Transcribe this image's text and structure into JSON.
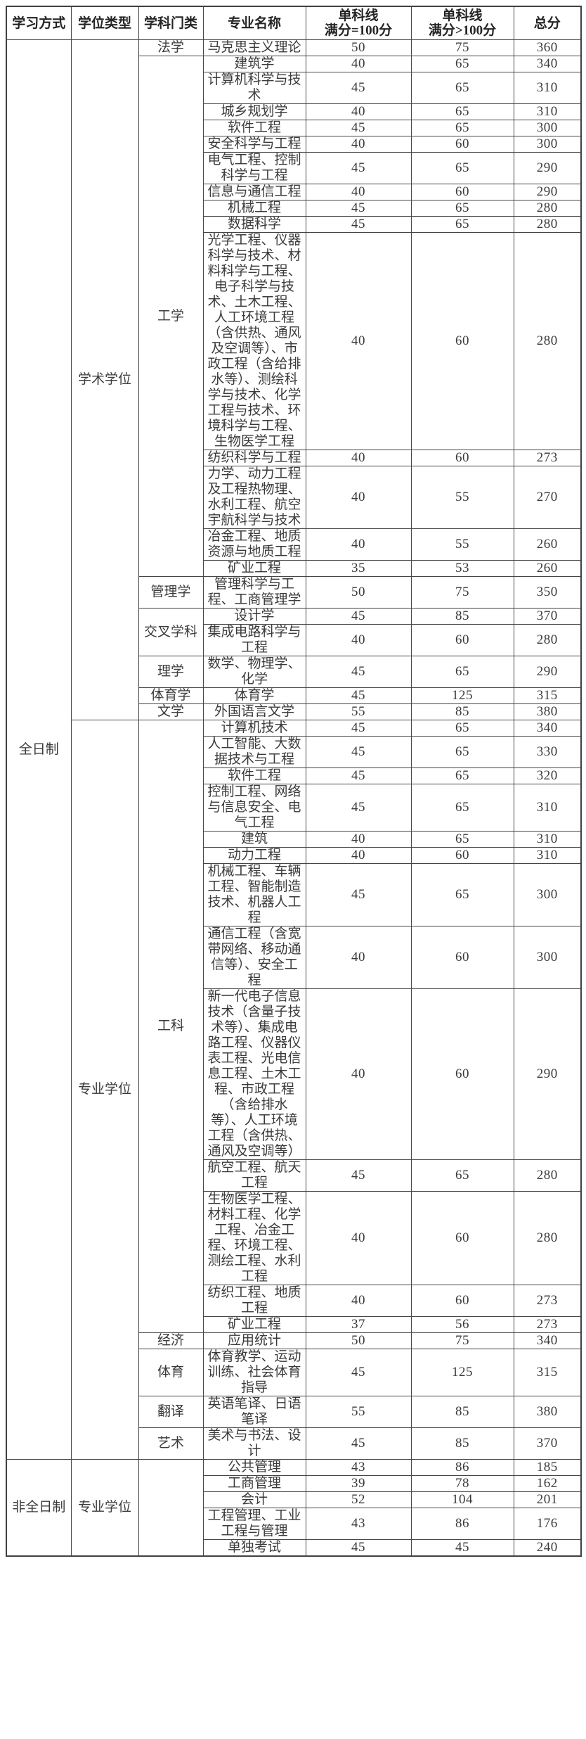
{
  "colors": {
    "background": "#ffffff",
    "border": "#454545",
    "text": "#3a3a3a",
    "header_text": "#242424"
  },
  "table": {
    "columns": [
      "学习方式",
      "学位类型",
      "学科门类",
      "专业名称",
      "单科线\n满分=100分",
      "单科线\n满分>100分",
      "总分"
    ],
    "rows": [
      [
        {
          "t": "全日制",
          "rs": 38,
          "c": "mode"
        },
        {
          "t": "学术学位",
          "rs": 21,
          "c": "degree"
        },
        {
          "t": "法学",
          "c": "cat"
        },
        {
          "t": "马克思主义理论",
          "c": "major"
        },
        {
          "t": "50",
          "c": "num"
        },
        {
          "t": "75",
          "c": "num"
        },
        {
          "t": "360",
          "c": "num"
        }
      ],
      [
        {
          "t": "工学",
          "rs": 14,
          "c": "cat"
        },
        {
          "t": "建筑学",
          "c": "major"
        },
        {
          "t": "40",
          "c": "num"
        },
        {
          "t": "65",
          "c": "num"
        },
        {
          "t": "340",
          "c": "num"
        }
      ],
      [
        {
          "t": "计算机科学与技术",
          "c": "major"
        },
        {
          "t": "45",
          "c": "num"
        },
        {
          "t": "65",
          "c": "num"
        },
        {
          "t": "310",
          "c": "num"
        }
      ],
      [
        {
          "t": "城乡规划学",
          "c": "major"
        },
        {
          "t": "40",
          "c": "num"
        },
        {
          "t": "65",
          "c": "num"
        },
        {
          "t": "310",
          "c": "num"
        }
      ],
      [
        {
          "t": "软件工程",
          "c": "major"
        },
        {
          "t": "45",
          "c": "num"
        },
        {
          "t": "65",
          "c": "num"
        },
        {
          "t": "300",
          "c": "num"
        }
      ],
      [
        {
          "t": "安全科学与工程",
          "c": "major"
        },
        {
          "t": "40",
          "c": "num"
        },
        {
          "t": "60",
          "c": "num"
        },
        {
          "t": "300",
          "c": "num"
        }
      ],
      [
        {
          "t": "电气工程、控制科学与工程",
          "c": "major"
        },
        {
          "t": "45",
          "c": "num"
        },
        {
          "t": "65",
          "c": "num"
        },
        {
          "t": "290",
          "c": "num"
        }
      ],
      [
        {
          "t": "信息与通信工程",
          "c": "major"
        },
        {
          "t": "40",
          "c": "num"
        },
        {
          "t": "60",
          "c": "num"
        },
        {
          "t": "290",
          "c": "num"
        }
      ],
      [
        {
          "t": "机械工程",
          "c": "major"
        },
        {
          "t": "45",
          "c": "num"
        },
        {
          "t": "65",
          "c": "num"
        },
        {
          "t": "280",
          "c": "num"
        }
      ],
      [
        {
          "t": "数据科学",
          "c": "major"
        },
        {
          "t": "45",
          "c": "num"
        },
        {
          "t": "65",
          "c": "num"
        },
        {
          "t": "280",
          "c": "num"
        }
      ],
      [
        {
          "t": "光学工程、仪器科学与技术、材料科学与工程、电子科学与技术、土木工程、人工环境工程（含供热、通风及空调等）、市政工程（含给排水等）、测绘科学与技术、化学工程与技术、环境科学与工程、生物医学工程",
          "c": "major"
        },
        {
          "t": "40",
          "c": "num"
        },
        {
          "t": "60",
          "c": "num"
        },
        {
          "t": "280",
          "c": "num"
        }
      ],
      [
        {
          "t": "纺织科学与工程",
          "c": "major"
        },
        {
          "t": "40",
          "c": "num"
        },
        {
          "t": "60",
          "c": "num"
        },
        {
          "t": "273",
          "c": "num"
        }
      ],
      [
        {
          "t": "力学、动力工程及工程热物理、水利工程、航空宇航科学与技术",
          "c": "major"
        },
        {
          "t": "40",
          "c": "num"
        },
        {
          "t": "55",
          "c": "num"
        },
        {
          "t": "270",
          "c": "num"
        }
      ],
      [
        {
          "t": "冶金工程、地质资源与地质工程",
          "c": "major"
        },
        {
          "t": "40",
          "c": "num"
        },
        {
          "t": "55",
          "c": "num"
        },
        {
          "t": "260",
          "c": "num"
        }
      ],
      [
        {
          "t": "矿业工程",
          "c": "major"
        },
        {
          "t": "35",
          "c": "num"
        },
        {
          "t": "53",
          "c": "num"
        },
        {
          "t": "260",
          "c": "num"
        }
      ],
      [
        {
          "t": "管理学",
          "c": "cat"
        },
        {
          "t": "管理科学与工程、工商管理学",
          "c": "major"
        },
        {
          "t": "50",
          "c": "num"
        },
        {
          "t": "75",
          "c": "num"
        },
        {
          "t": "350",
          "c": "num"
        }
      ],
      [
        {
          "t": "交叉学科",
          "rs": 2,
          "c": "cat"
        },
        {
          "t": "设计学",
          "c": "major"
        },
        {
          "t": "45",
          "c": "num"
        },
        {
          "t": "85",
          "c": "num"
        },
        {
          "t": "370",
          "c": "num"
        }
      ],
      [
        {
          "t": "集成电路科学与工程",
          "c": "major"
        },
        {
          "t": "40",
          "c": "num"
        },
        {
          "t": "60",
          "c": "num"
        },
        {
          "t": "280",
          "c": "num"
        }
      ],
      [
        {
          "t": "理学",
          "c": "cat"
        },
        {
          "t": "数学、物理学、化学",
          "c": "major"
        },
        {
          "t": "45",
          "c": "num"
        },
        {
          "t": "65",
          "c": "num"
        },
        {
          "t": "290",
          "c": "num"
        }
      ],
      [
        {
          "t": "体育学",
          "c": "cat"
        },
        {
          "t": "体育学",
          "c": "major"
        },
        {
          "t": "45",
          "c": "num"
        },
        {
          "t": "125",
          "c": "num"
        },
        {
          "t": "315",
          "c": "num"
        }
      ],
      [
        {
          "t": "文学",
          "c": "cat"
        },
        {
          "t": "外国语言文学",
          "c": "major"
        },
        {
          "t": "55",
          "c": "num"
        },
        {
          "t": "85",
          "c": "num"
        },
        {
          "t": "380",
          "c": "num"
        }
      ],
      [
        {
          "t": "专业学位",
          "rs": 17,
          "c": "degree"
        },
        {
          "t": "工科",
          "rs": 13,
          "c": "cat"
        },
        {
          "t": "计算机技术",
          "c": "major"
        },
        {
          "t": "45",
          "c": "num"
        },
        {
          "t": "65",
          "c": "num"
        },
        {
          "t": "340",
          "c": "num"
        }
      ],
      [
        {
          "t": "人工智能、大数据技术与工程",
          "c": "major"
        },
        {
          "t": "45",
          "c": "num"
        },
        {
          "t": "65",
          "c": "num"
        },
        {
          "t": "330",
          "c": "num"
        }
      ],
      [
        {
          "t": "软件工程",
          "c": "major"
        },
        {
          "t": "45",
          "c": "num"
        },
        {
          "t": "65",
          "c": "num"
        },
        {
          "t": "320",
          "c": "num"
        }
      ],
      [
        {
          "t": "控制工程、网络与信息安全、电气工程",
          "c": "major"
        },
        {
          "t": "45",
          "c": "num"
        },
        {
          "t": "65",
          "c": "num"
        },
        {
          "t": "310",
          "c": "num"
        }
      ],
      [
        {
          "t": "建筑",
          "c": "major"
        },
        {
          "t": "40",
          "c": "num"
        },
        {
          "t": "65",
          "c": "num"
        },
        {
          "t": "310",
          "c": "num"
        }
      ],
      [
        {
          "t": "动力工程",
          "c": "major"
        },
        {
          "t": "40",
          "c": "num"
        },
        {
          "t": "60",
          "c": "num"
        },
        {
          "t": "310",
          "c": "num"
        }
      ],
      [
        {
          "t": "机械工程、车辆工程、智能制造技术、机器人工程",
          "c": "major"
        },
        {
          "t": "45",
          "c": "num"
        },
        {
          "t": "65",
          "c": "num"
        },
        {
          "t": "300",
          "c": "num"
        }
      ],
      [
        {
          "t": "通信工程（含宽带网络、移动通信等）、安全工程",
          "c": "major"
        },
        {
          "t": "40",
          "c": "num"
        },
        {
          "t": "60",
          "c": "num"
        },
        {
          "t": "300",
          "c": "num"
        }
      ],
      [
        {
          "t": "新一代电子信息技术（含量子技术等）、集成电路工程、仪器仪表工程、光电信息工程、土木工程、市政工程（含给排水等）、人工环境工程（含供热、通风及空调等）",
          "c": "major"
        },
        {
          "t": "40",
          "c": "num"
        },
        {
          "t": "60",
          "c": "num"
        },
        {
          "t": "290",
          "c": "num"
        }
      ],
      [
        {
          "t": "航空工程、航天工程",
          "c": "major"
        },
        {
          "t": "45",
          "c": "num"
        },
        {
          "t": "65",
          "c": "num"
        },
        {
          "t": "280",
          "c": "num"
        }
      ],
      [
        {
          "t": "生物医学工程、材料工程、化学工程、冶金工程、环境工程、测绘工程、水利工程",
          "c": "major"
        },
        {
          "t": "40",
          "c": "num"
        },
        {
          "t": "60",
          "c": "num"
        },
        {
          "t": "280",
          "c": "num"
        }
      ],
      [
        {
          "t": "纺织工程、地质工程",
          "c": "major"
        },
        {
          "t": "40",
          "c": "num"
        },
        {
          "t": "60",
          "c": "num"
        },
        {
          "t": "273",
          "c": "num"
        }
      ],
      [
        {
          "t": "矿业工程",
          "c": "major"
        },
        {
          "t": "37",
          "c": "num"
        },
        {
          "t": "56",
          "c": "num"
        },
        {
          "t": "273",
          "c": "num"
        }
      ],
      [
        {
          "t": "经济",
          "c": "cat"
        },
        {
          "t": "应用统计",
          "c": "major"
        },
        {
          "t": "50",
          "c": "num"
        },
        {
          "t": "75",
          "c": "num"
        },
        {
          "t": "340",
          "c": "num"
        }
      ],
      [
        {
          "t": "体育",
          "c": "cat"
        },
        {
          "t": "体育教学、运动训练、社会体育指导",
          "c": "major"
        },
        {
          "t": "45",
          "c": "num"
        },
        {
          "t": "125",
          "c": "num"
        },
        {
          "t": "315",
          "c": "num"
        }
      ],
      [
        {
          "t": "翻译",
          "c": "cat"
        },
        {
          "t": "英语笔译、日语笔译",
          "c": "major"
        },
        {
          "t": "55",
          "c": "num"
        },
        {
          "t": "85",
          "c": "num"
        },
        {
          "t": "380",
          "c": "num"
        }
      ],
      [
        {
          "t": "艺术",
          "c": "cat"
        },
        {
          "t": "美术与书法、设计",
          "c": "major"
        },
        {
          "t": "45",
          "c": "num"
        },
        {
          "t": "85",
          "c": "num"
        },
        {
          "t": "370",
          "c": "num"
        }
      ],
      [
        {
          "t": "非全日制",
          "rs": 5,
          "c": "mode"
        },
        {
          "t": "专业学位",
          "rs": 5,
          "c": "degree"
        },
        {
          "t": "",
          "rs": 5,
          "c": "cat"
        },
        {
          "t": "公共管理",
          "c": "major"
        },
        {
          "t": "43",
          "c": "num"
        },
        {
          "t": "86",
          "c": "num"
        },
        {
          "t": "185",
          "c": "num"
        }
      ],
      [
        {
          "t": "工商管理",
          "c": "major"
        },
        {
          "t": "39",
          "c": "num"
        },
        {
          "t": "78",
          "c": "num"
        },
        {
          "t": "162",
          "c": "num"
        }
      ],
      [
        {
          "t": "会计",
          "c": "major"
        },
        {
          "t": "52",
          "c": "num"
        },
        {
          "t": "104",
          "c": "num"
        },
        {
          "t": "201",
          "c": "num"
        }
      ],
      [
        {
          "t": "工程管理、工业工程与管理",
          "c": "major"
        },
        {
          "t": "43",
          "c": "num"
        },
        {
          "t": "86",
          "c": "num"
        },
        {
          "t": "176",
          "c": "num"
        }
      ],
      [
        {
          "t": "单独考试",
          "c": "major"
        },
        {
          "t": "45",
          "c": "num"
        },
        {
          "t": "45",
          "c": "num"
        },
        {
          "t": "240",
          "c": "num"
        }
      ]
    ]
  }
}
